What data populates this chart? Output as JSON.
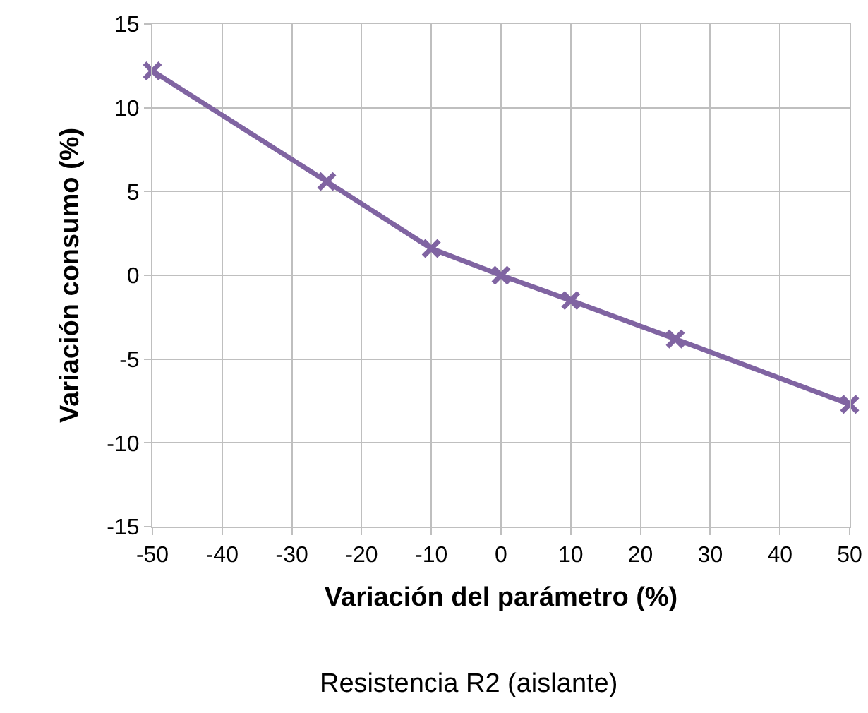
{
  "chart_data": {
    "type": "line",
    "title": "Resistencia R2 (aislante)",
    "xlabel": "Variación del parámetro (%)",
    "ylabel": "Variación consumo (%)",
    "x": [
      -50,
      -25,
      -10,
      0,
      10,
      25,
      50
    ],
    "series": [
      {
        "color": "#8064a2",
        "values": [
          12.2,
          5.6,
          1.6,
          0,
          -1.5,
          -3.8,
          -7.7
        ]
      }
    ],
    "xlim": [
      -50,
      50
    ],
    "xticks": [
      -50,
      -40,
      -30,
      -20,
      -10,
      0,
      10,
      20,
      30,
      40,
      50
    ],
    "ylim": [
      -15,
      15
    ],
    "yticks": [
      -15,
      -10,
      -5,
      0,
      5,
      10,
      15
    ],
    "grid": true,
    "marker": "cross",
    "line_style": "solid"
  }
}
